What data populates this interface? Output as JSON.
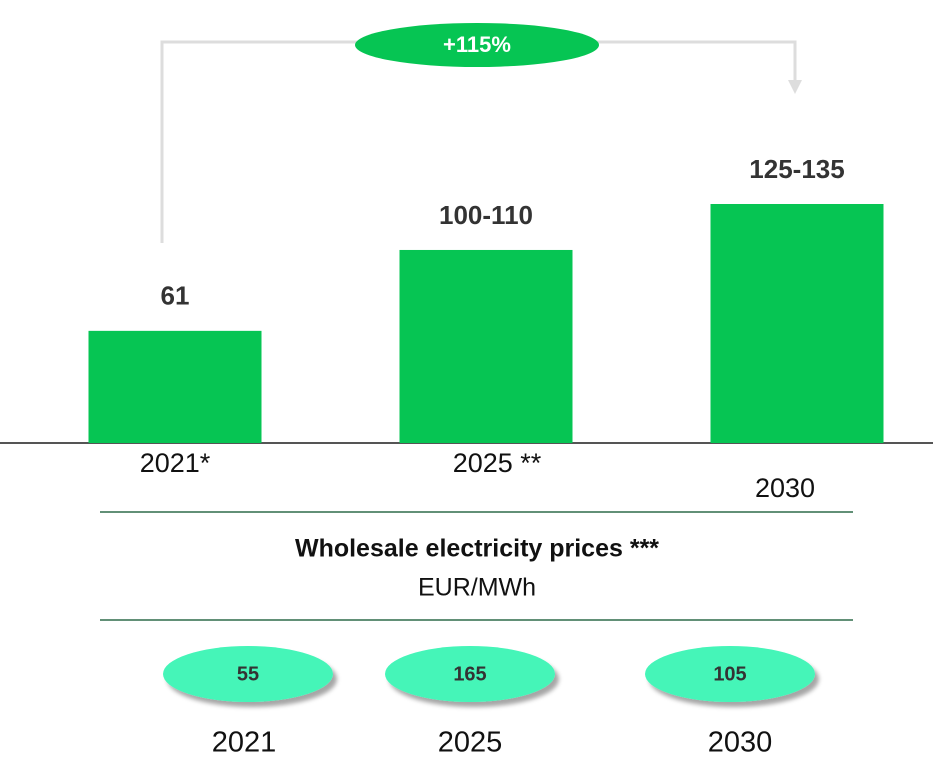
{
  "chart_data": {
    "type": "bar",
    "categories": [
      "2021*",
      "2025 **",
      "2030"
    ],
    "values": [
      61,
      105,
      130
    ],
    "value_labels": [
      "61",
      "100-110",
      "125-135"
    ],
    "color": "#06c553",
    "annotation": "+115%",
    "prices": {
      "title": "Wholesale electricity prices ***",
      "unit": "EUR/MWh",
      "categories": [
        "2021",
        "2025",
        "2030"
      ],
      "values": [
        55,
        165,
        105
      ],
      "color": "#44f5b8"
    }
  }
}
